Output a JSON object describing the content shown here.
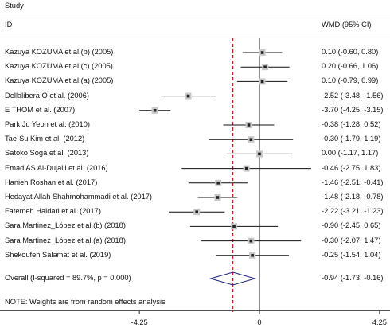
{
  "header": {
    "col1_line1": "Study",
    "col1_line2": "ID",
    "col2": "WMD (95% CI)"
  },
  "note": "NOTE: Weights are from random effects analysis",
  "chart_data": {
    "type": "forest",
    "xlim": [
      -4.25,
      4.25
    ],
    "xticks": [
      "-4.25",
      "0",
      "4.25"
    ],
    "reference_line": 0,
    "overall_line": -0.94,
    "studies": [
      {
        "label": "Kazuya KOZUMA et al.(b) (2005)",
        "est": 0.1,
        "lo": -0.6,
        "hi": 0.8,
        "ci_text": "0.10 (-0.60, 0.80)"
      },
      {
        "label": "Kazuya KOZUMA et al.(c) (2005)",
        "est": 0.2,
        "lo": -0.66,
        "hi": 1.06,
        "ci_text": "0.20 (-0.66, 1.06)"
      },
      {
        "label": "Kazuya KOZUMA et al.(a) (2005)",
        "est": 0.1,
        "lo": -0.79,
        "hi": 0.99,
        "ci_text": "0.10 (-0.79, 0.99)"
      },
      {
        "label": "Dellalibera O et al. (2006)",
        "est": -2.52,
        "lo": -3.48,
        "hi": -1.56,
        "ci_text": "-2.52 (-3.48, -1.56)"
      },
      {
        "label": "E THOM et al. (2007)",
        "est": -3.7,
        "lo": -4.25,
        "hi": -3.15,
        "ci_text": "-3.70 (-4.25, -3.15)"
      },
      {
        "label": "Park Ju Yeon et al. (2010)",
        "est": -0.38,
        "lo": -1.28,
        "hi": 0.52,
        "ci_text": "-0.38 (-1.28, 0.52)"
      },
      {
        "label": "Tae-Su Kim et al. (2012)",
        "est": -0.3,
        "lo": -1.79,
        "hi": 1.19,
        "ci_text": "-0.30 (-1.79, 1.19)"
      },
      {
        "label": "Satoko Soga et al. (2013)",
        "est": 0.0,
        "lo": -1.17,
        "hi": 1.17,
        "ci_text": "0.00 (-1.17, 1.17)"
      },
      {
        "label": "Emad AS Al-Dujaili et al. (2016)",
        "est": -0.46,
        "lo": -2.75,
        "hi": 1.83,
        "ci_text": "-0.46 (-2.75, 1.83)"
      },
      {
        "label": "Hanieh Roshan et al. (2017)",
        "est": -1.46,
        "lo": -2.51,
        "hi": -0.41,
        "ci_text": "-1.46 (-2.51, -0.41)"
      },
      {
        "label": "Hedayat Allah Shahmohammadi et al. (2017)",
        "est": -1.48,
        "lo": -2.18,
        "hi": -0.78,
        "ci_text": "-1.48 (-2.18, -0.78)"
      },
      {
        "label": "Fatemeh Haidari et al. (2017)",
        "est": -2.22,
        "lo": -3.21,
        "hi": -1.23,
        "ci_text": "-2.22 (-3.21, -1.23)"
      },
      {
        "label": "Sara Martinez_López et al.(b) (2018)",
        "est": -0.9,
        "lo": -2.45,
        "hi": 0.65,
        "ci_text": "-0.90 (-2.45, 0.65)"
      },
      {
        "label": "Sara Martinez_López et al.(a) (2018)",
        "est": -0.3,
        "lo": -2.07,
        "hi": 1.47,
        "ci_text": "-0.30 (-2.07, 1.47)"
      },
      {
        "label": "Shekoufeh Salamat et al. (2019)",
        "est": -0.25,
        "lo": -1.54,
        "hi": 1.04,
        "ci_text": "-0.25 (-1.54, 1.04)"
      }
    ],
    "overall": {
      "label": "Overall  (I-squared = 89.7%, p = 0.000)",
      "est": -0.94,
      "lo": -1.73,
      "hi": -0.16,
      "ci_text": "-0.94 (-1.73, -0.16)"
    }
  }
}
